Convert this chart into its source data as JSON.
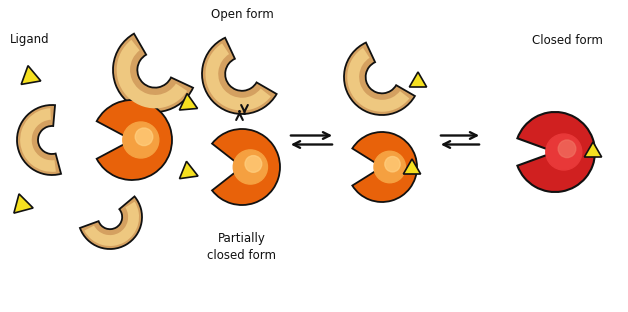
{
  "bg_color": "#ffffff",
  "orange_dark": "#E8620A",
  "orange_mid": "#F07820",
  "orange_light": "#F5A040",
  "orange_glow": "#FFD080",
  "tan_dark": "#C8882A",
  "tan_mid": "#D4A060",
  "tan_light": "#EEC880",
  "tan_glow": "#FFE8B0",
  "yellow": "#F5E020",
  "yellow_edge": "#A09000",
  "red_dark": "#D02020",
  "red_mid": "#E83838",
  "red_light": "#F07060",
  "red_glow": "#FFA090",
  "black": "#111111",
  "labels": {
    "ligand": "Ligand",
    "open_form": "Open form",
    "partially_closed": "Partially\nclosed form",
    "closed_form": "Closed form"
  }
}
